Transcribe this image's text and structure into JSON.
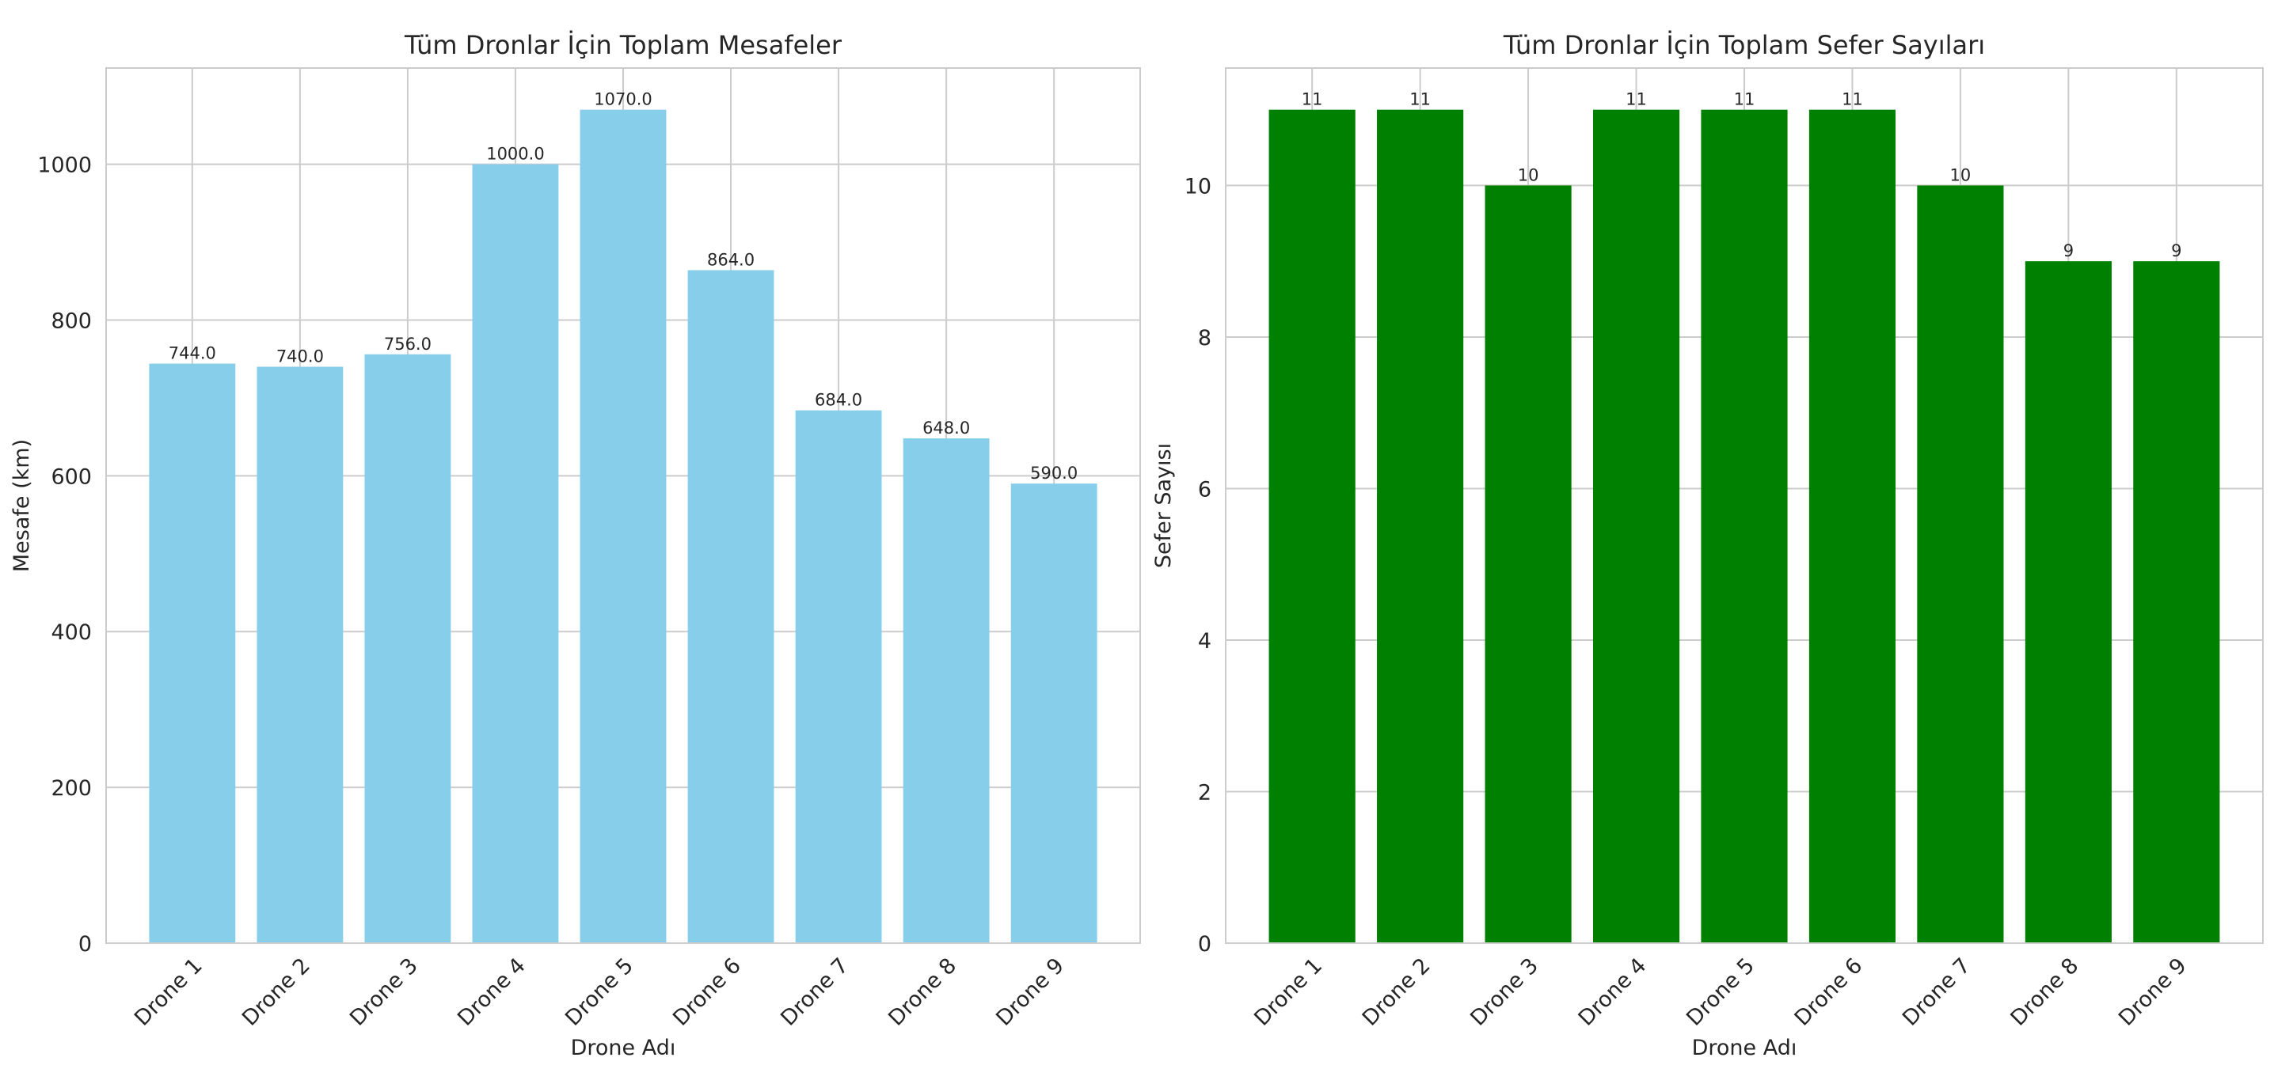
{
  "chart_data": [
    {
      "type": "bar",
      "title": "Tüm Dronlar İçin Toplam Mesafeler",
      "xlabel": "Drone Adı",
      "ylabel": "Mesafe (km)",
      "categories": [
        "Drone 1",
        "Drone 2",
        "Drone 3",
        "Drone 4",
        "Drone 5",
        "Drone 6",
        "Drone 7",
        "Drone 8",
        "Drone 9"
      ],
      "values": [
        744.0,
        740.0,
        756.0,
        1000.0,
        1070.0,
        864.0,
        684.0,
        648.0,
        590.0
      ],
      "value_labels": [
        "744.0",
        "740.0",
        "756.0",
        "1000.0",
        "1070.0",
        "864.0",
        "684.0",
        "648.0",
        "590.0"
      ],
      "yticks": [
        0,
        200,
        400,
        600,
        800,
        1000
      ],
      "ylim": [
        0,
        1123.5
      ],
      "color": "#87ceeb",
      "grid": true,
      "legend": "none"
    },
    {
      "type": "bar",
      "title": "Tüm Dronlar İçin Toplam Sefer Sayıları",
      "xlabel": "Drone Adı",
      "ylabel": "Sefer Sayısı",
      "categories": [
        "Drone 1",
        "Drone 2",
        "Drone 3",
        "Drone 4",
        "Drone 5",
        "Drone 6",
        "Drone 7",
        "Drone 8",
        "Drone 9"
      ],
      "values": [
        11,
        11,
        10,
        11,
        11,
        11,
        10,
        9,
        9
      ],
      "value_labels": [
        "11",
        "11",
        "10",
        "11",
        "11",
        "11",
        "10",
        "9",
        "9"
      ],
      "yticks": [
        0,
        2,
        4,
        6,
        8,
        10
      ],
      "ylim": [
        0,
        11.55
      ],
      "color": "#008000",
      "grid": true,
      "legend": "none"
    }
  ]
}
